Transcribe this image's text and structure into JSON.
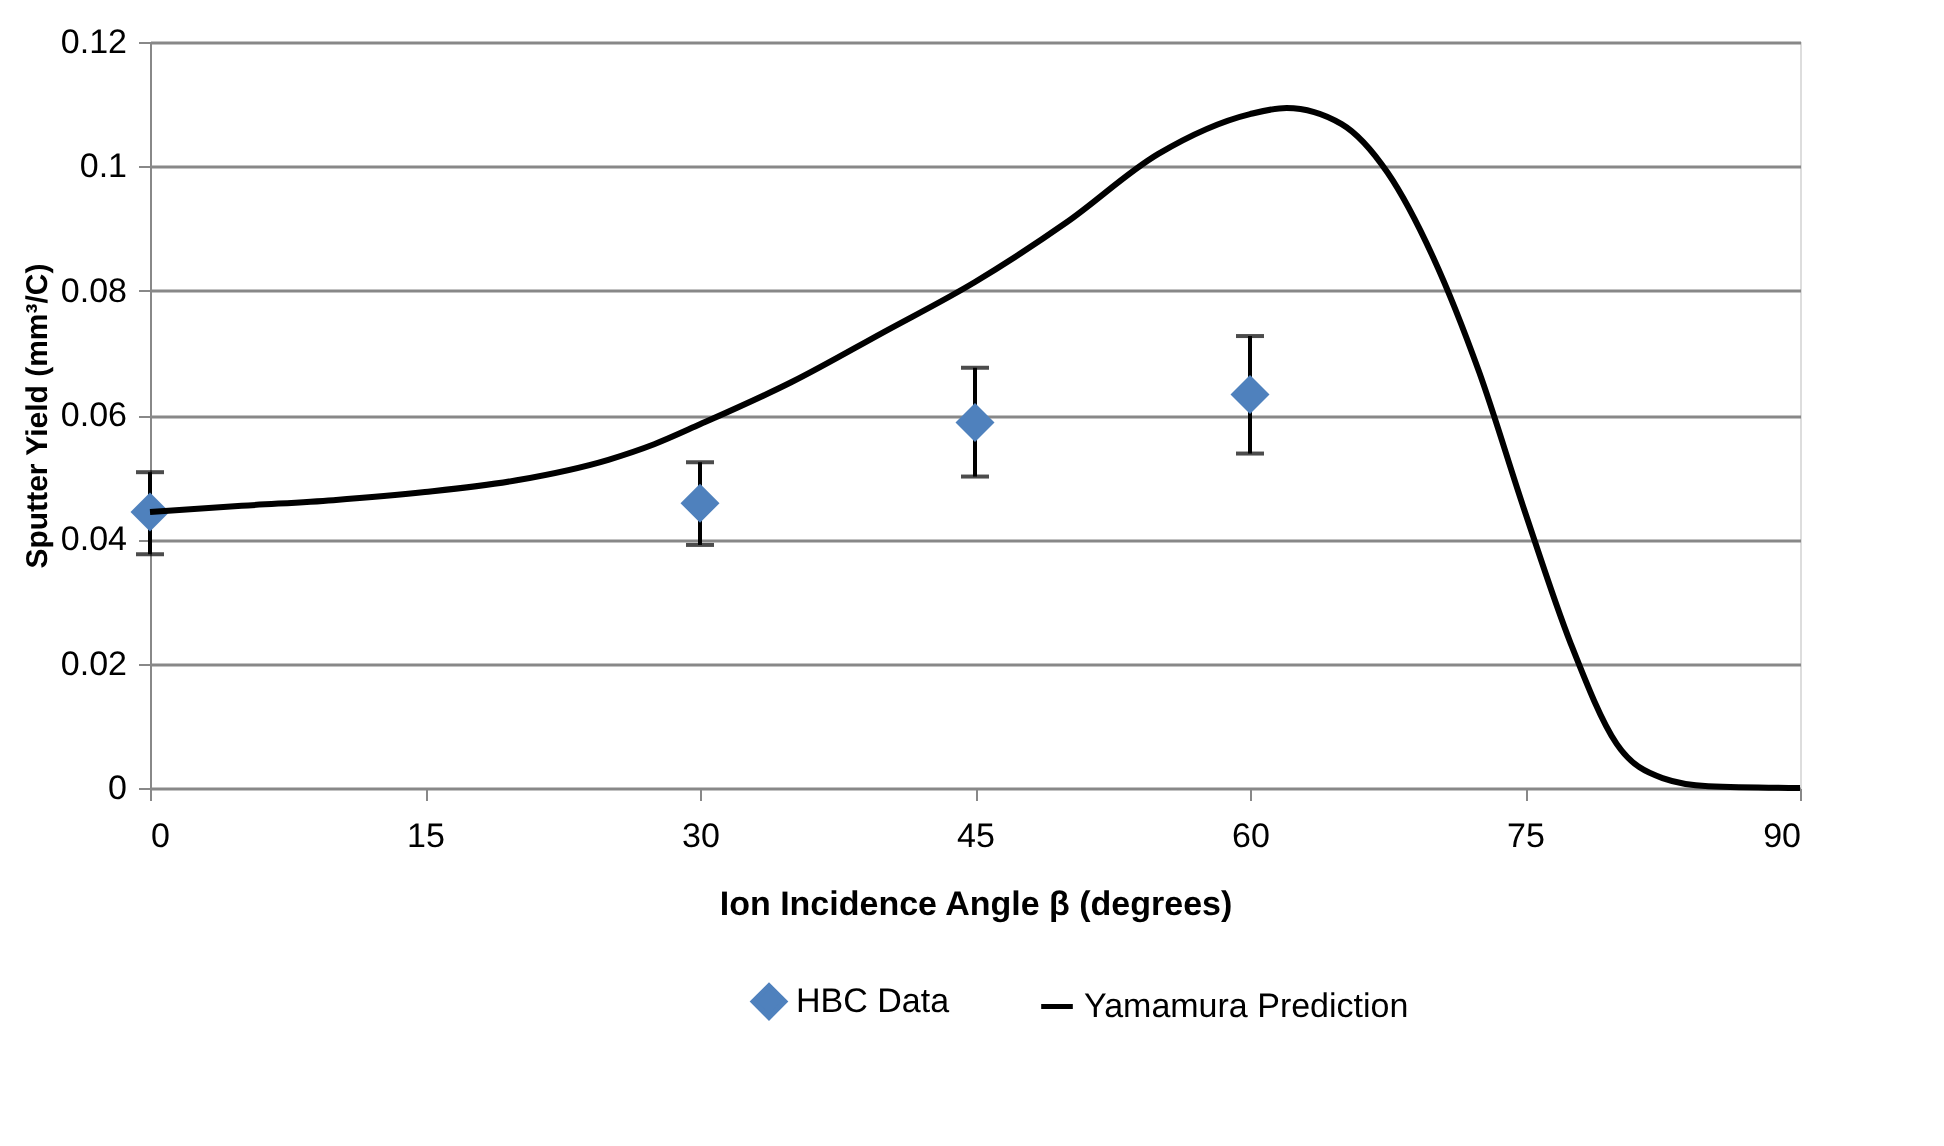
{
  "chart_data": {
    "type": "scatter",
    "xlabel": "Ion Incidence Angle β (degrees)",
    "ylabel": "Sputter Yield (mm³/C)",
    "xlim": [
      0,
      90
    ],
    "xticks": [
      0,
      15,
      30,
      45,
      60,
      75,
      90
    ],
    "ylim": [
      0,
      0.12
    ],
    "yticks": [
      0,
      0.02,
      0.04,
      0.06,
      0.08,
      0.1,
      0.12
    ],
    "grid": "y",
    "legend": "bottom",
    "series": [
      {
        "name": "HBC Data",
        "marker": "diamond",
        "color": "#4f81bd",
        "x": [
          0,
          30,
          45,
          60
        ],
        "values": [
          0.0444,
          0.0458,
          0.0588,
          0.0633
        ],
        "errors": [
          [
            0.0376,
            0.0508
          ],
          [
            0.0391,
            0.0524
          ],
          [
            0.0501,
            0.0676
          ],
          [
            0.0538,
            0.0727
          ]
        ]
      },
      {
        "name": "Yamamura Prediction",
        "type": "line",
        "marker": "none",
        "line_style": "solid",
        "color": "#000000",
        "x": [
          0,
          5,
          10,
          15,
          20,
          25,
          27.5,
          30,
          35,
          40,
          45,
          50,
          55,
          60,
          62,
          65,
          67.5,
          70,
          72.5,
          75,
          77.5,
          80,
          82.5,
          85,
          90
        ],
        "values": [
          0.0444,
          0.0454,
          0.0463,
          0.0476,
          0.0495,
          0.0528,
          0.0553,
          0.0585,
          0.0653,
          0.0733,
          0.0814,
          0.091,
          0.102,
          0.1084,
          0.1094,
          0.1068,
          0.099,
          0.0853,
          0.0669,
          0.0444,
          0.0232,
          0.0071,
          0.0016,
          0.0003,
          0
        ]
      }
    ]
  }
}
